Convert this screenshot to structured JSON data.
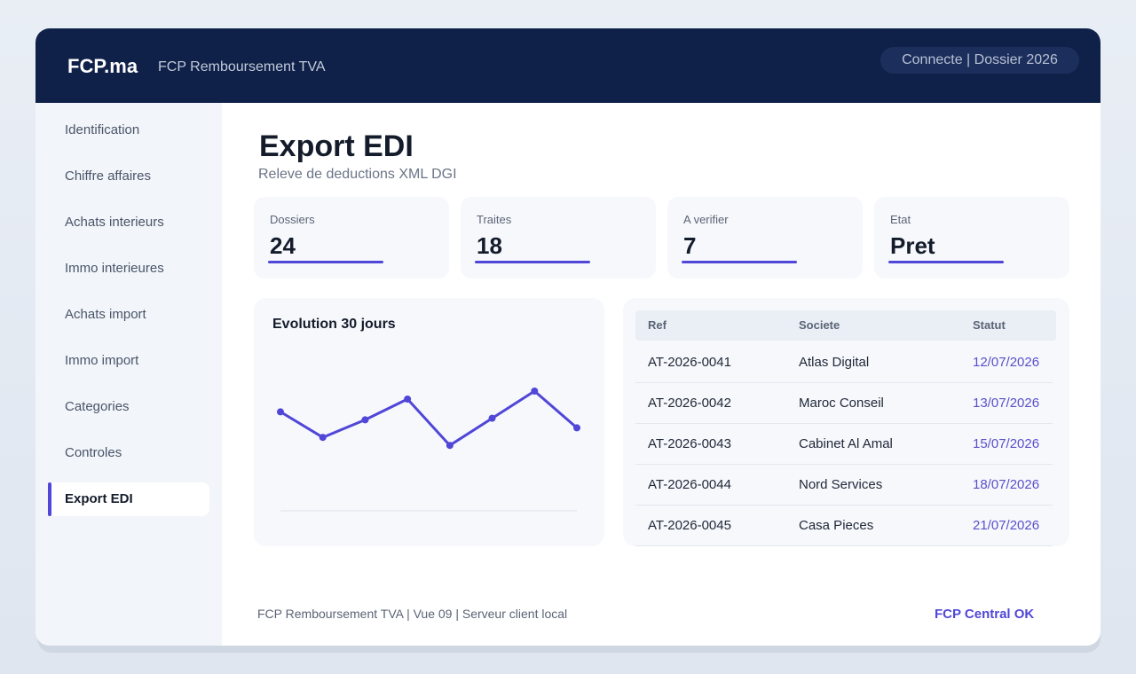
{
  "header": {
    "brand": "FCP.ma",
    "subtitle": "FCP Remboursement TVA",
    "session": "Connecte | Dossier 2026"
  },
  "sidebar": {
    "items": [
      {
        "label": "Identification",
        "active": false
      },
      {
        "label": "Chiffre affaires",
        "active": false
      },
      {
        "label": "Achats interieurs",
        "active": false
      },
      {
        "label": "Immo interieures",
        "active": false
      },
      {
        "label": "Achats import",
        "active": false
      },
      {
        "label": "Immo import",
        "active": false
      },
      {
        "label": "Categories",
        "active": false
      },
      {
        "label": "Controles",
        "active": false
      },
      {
        "label": "Export EDI",
        "active": true
      }
    ]
  },
  "main": {
    "title": "Export EDI",
    "subtitle": "Releve de deductions XML DGI",
    "kpis": [
      {
        "label": "Dossiers",
        "value": "24"
      },
      {
        "label": "Traites",
        "value": "18"
      },
      {
        "label": "A verifier",
        "value": "7"
      },
      {
        "label": "Etat",
        "value": "Pret"
      }
    ],
    "chart": {
      "title": "Evolution 30 jours"
    },
    "table": {
      "headers": [
        "Ref",
        "Societe",
        "Statut"
      ],
      "rows": [
        [
          "AT-2026-0041",
          "Atlas Digital",
          "12/07/2026"
        ],
        [
          "AT-2026-0042",
          "Maroc Conseil",
          "13/07/2026"
        ],
        [
          "AT-2026-0043",
          "Cabinet Al Amal",
          "15/07/2026"
        ],
        [
          "AT-2026-0044",
          "Nord Services",
          "18/07/2026"
        ],
        [
          "AT-2026-0045",
          "Casa Pieces",
          "21/07/2026"
        ]
      ]
    }
  },
  "chart_data": {
    "type": "line",
    "title": "Evolution 30 jours",
    "x": [
      1,
      2,
      3,
      4,
      5,
      6,
      7,
      8
    ],
    "series": [
      {
        "values": [
          62,
          46,
          57,
          70,
          41,
          58,
          75,
          52
        ]
      }
    ],
    "ylim": [
      0,
      100
    ],
    "grid": false,
    "color": "#5046d8"
  },
  "footer": {
    "text": "FCP Remboursement TVA | Vue 09 | Serveur client local",
    "status": "FCP Central OK"
  },
  "colors": {
    "topbar": "#0f2149",
    "accent": "#5046d8",
    "sidebar": "#f2f5fa",
    "card": "#f6f8fc"
  }
}
